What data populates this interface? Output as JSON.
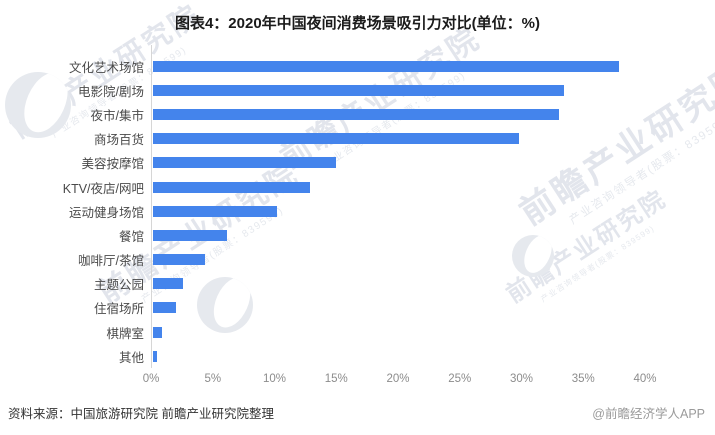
{
  "title": "图表4：2020年中国夜间消费场景吸引力对比(单位：%)",
  "chart_data": {
    "type": "bar",
    "orientation": "horizontal",
    "title": "图表4：2020年中国夜间消费场景吸引力对比(单位：%)",
    "categories": [
      "文化艺术场馆",
      "电影院/剧场",
      "夜市/集市",
      "商场百货",
      "美容按摩馆",
      "KTV/夜店/网吧",
      "运动健身场馆",
      "餐馆",
      "咖啡厅/茶馆",
      "主题公园",
      "住宿场所",
      "棋牌室",
      "其他"
    ],
    "values": [
      37.7,
      33.3,
      32.9,
      29.6,
      14.8,
      12.7,
      10.0,
      6.0,
      4.2,
      2.4,
      1.9,
      0.7,
      0.3
    ],
    "unit": "%",
    "xlabel": "",
    "ylabel": "",
    "xlim": [
      0,
      40
    ],
    "x_ticks": [
      "0%",
      "5%",
      "10%",
      "15%",
      "20%",
      "25%",
      "30%",
      "35%",
      "40%"
    ],
    "grid": false,
    "legend": false,
    "bar_color": "#4484ec"
  },
  "footer": {
    "source": "资料来源：中国旅游研究院 前瞻产业研究院整理",
    "credit": "@前瞻经济学人APP"
  },
  "watermark": {
    "line1": "前瞻产业研究院",
    "line2": "产业咨询领导者(股票：839599)",
    "logo_icon": "qianzhan-swoosh-logo"
  },
  "colors": {
    "bar": "#4484ec",
    "title_text": "#1b1b1b",
    "category_text": "#4a4a4a",
    "tick_text": "#8c8c8c",
    "axis_line": "#d6d6d6",
    "source_text": "#333333",
    "credit_text": "#9a9a9a",
    "watermark": "#e2e5ec"
  }
}
